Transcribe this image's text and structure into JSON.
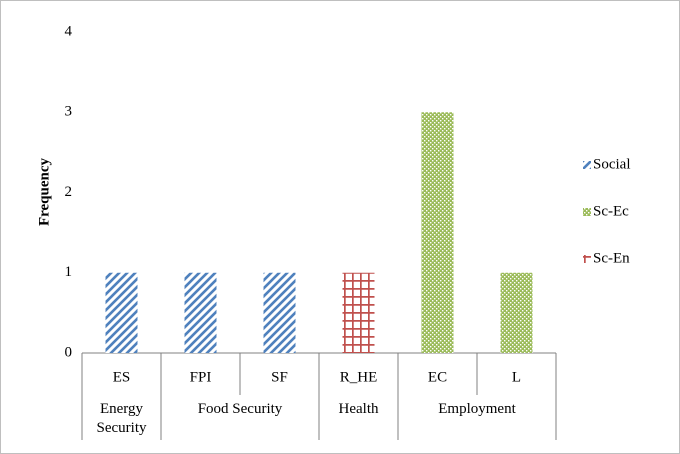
{
  "chart_data": {
    "type": "bar",
    "y_label": "Frequency",
    "categories": [
      "ES",
      "FPI",
      "SF",
      "R_HE",
      "EC",
      "L"
    ],
    "groups": [
      {
        "name": "Energy Security",
        "span": 1
      },
      {
        "name": "Food Security",
        "span": 2
      },
      {
        "name": "Health",
        "span": 1
      },
      {
        "name": "Employment",
        "span": 2
      }
    ],
    "series": [
      {
        "name": "Social",
        "color": "#4f81bd",
        "pattern": "diagonal",
        "values": [
          1,
          1,
          1,
          null,
          null,
          null
        ]
      },
      {
        "name": "Sc-Ec",
        "color": "#9bbb59",
        "pattern": "dots",
        "values": [
          null,
          null,
          null,
          null,
          3,
          1
        ]
      },
      {
        "name": "Sc-En",
        "color": "#c0504d",
        "pattern": "grid",
        "values": [
          null,
          null,
          null,
          1,
          null,
          null
        ]
      }
    ],
    "ylim": [
      0,
      4
    ],
    "yticks": [
      0,
      1,
      2,
      3,
      4
    ]
  }
}
